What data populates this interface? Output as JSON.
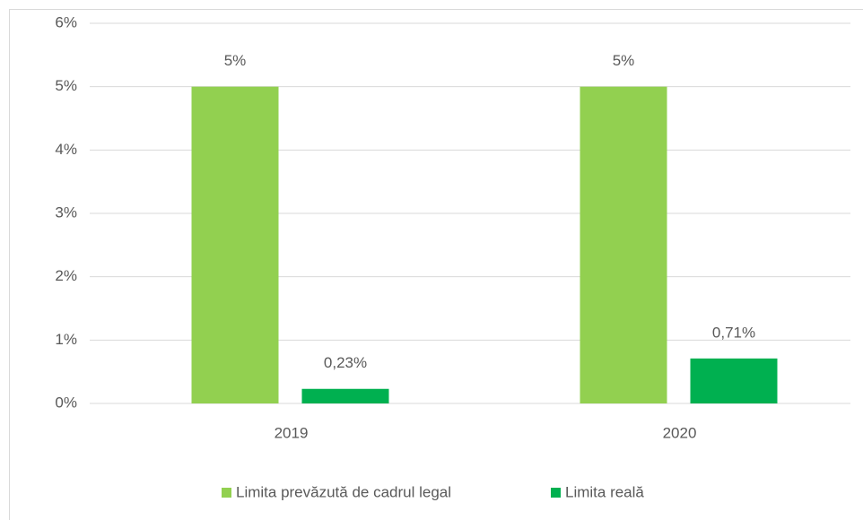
{
  "chart_data": {
    "type": "bar",
    "categories": [
      "2019",
      "2020"
    ],
    "series": [
      {
        "name": "Limita prevăzută de cadrul legal",
        "color": "#92d050",
        "values": [
          5,
          5
        ],
        "value_labels": [
          "5%",
          "5%"
        ]
      },
      {
        "name": "Limita reală",
        "color": "#00b050",
        "values": [
          0.23,
          0.71
        ],
        "value_labels": [
          "0,23%",
          "0,71%"
        ]
      }
    ],
    "ylim": [
      0,
      6
    ],
    "yticks": [
      {
        "value": 0,
        "label": "0%"
      },
      {
        "value": 1,
        "label": "1%"
      },
      {
        "value": 2,
        "label": "2%"
      },
      {
        "value": 3,
        "label": "3%"
      },
      {
        "value": 4,
        "label": "4%"
      },
      {
        "value": 5,
        "label": "5%"
      },
      {
        "value": 6,
        "label": "6%"
      }
    ],
    "grid": true,
    "legend": "bottom"
  }
}
